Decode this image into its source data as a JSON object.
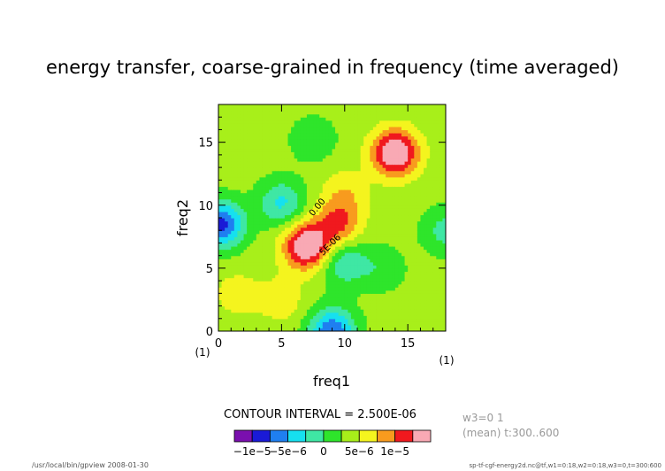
{
  "chart_data": {
    "type": "heatmap",
    "title": "energy transfer, coarse-grained in frequency (time averaged)",
    "xlabel": "freq1",
    "ylabel": "freq2",
    "xlim": [
      0,
      18
    ],
    "ylim": [
      0,
      18
    ],
    "x_ticks": [
      0,
      5,
      10,
      15
    ],
    "y_ticks": [
      0,
      5,
      10,
      15
    ],
    "x_unit": "(1)",
    "y_unit": "(1)",
    "contour_interval_text": "CONTOUR INTERVAL = 2.500E-06",
    "contour_labels": [
      "0.00",
      "5E-06"
    ],
    "colorbar": {
      "levels": [
        -1.25e-05,
        -1e-05,
        -7.5e-06,
        -5e-06,
        -2.5e-06,
        0,
        2.5e-06,
        5e-06,
        7.5e-06,
        1e-05,
        1.25e-05
      ],
      "colors": [
        "#7a0fae",
        "#1a1ad6",
        "#1f7ff0",
        "#16e0ef",
        "#3fe7a4",
        "#2ee52b",
        "#a8ef1a",
        "#f4f41e",
        "#f89b1e",
        "#f0191e",
        "#f9a9b4"
      ],
      "tick_labels": [
        "−1e−5",
        "−5e−6",
        "0",
        "5e−6",
        "1e−5"
      ]
    },
    "features": [
      {
        "x": 14.0,
        "y": 14.2,
        "value": 1.25e-05
      },
      {
        "x": 7.0,
        "y": 6.8,
        "value": 1.25e-05
      },
      {
        "x": 9.5,
        "y": 8.5,
        "value": 7e-06
      },
      {
        "x": 10.0,
        "y": 11.0,
        "value": 3.5e-06
      },
      {
        "x": 0.2,
        "y": 8.5,
        "value": -1.2e-05
      },
      {
        "x": 9.0,
        "y": 0.0,
        "value": -1.1e-05
      },
      {
        "x": 10.0,
        "y": 5.5,
        "value": -6e-06
      },
      {
        "x": 5.0,
        "y": 10.2,
        "value": -6.5e-06
      },
      {
        "x": 18.0,
        "y": 8.0,
        "value": -4.5e-06
      },
      {
        "x": 7.5,
        "y": 15.3,
        "value": -3e-06
      },
      {
        "x": 13.0,
        "y": 5.0,
        "value": -2.8e-06
      },
      {
        "x": 5.0,
        "y": 2.5,
        "value": 3e-06
      },
      {
        "x": 1.5,
        "y": 3.0,
        "value": 2.8e-06
      }
    ]
  },
  "side_info": {
    "line1": "w3=0 1",
    "line2": "(mean) t:300..600"
  },
  "footer": {
    "left": "/usr/local/bin/gpview  2008-01-30",
    "right": "sp-tf-cgf-energy2d.nc@tf,w1=0:18,w2=0:18,w3=0,t=300:600"
  }
}
